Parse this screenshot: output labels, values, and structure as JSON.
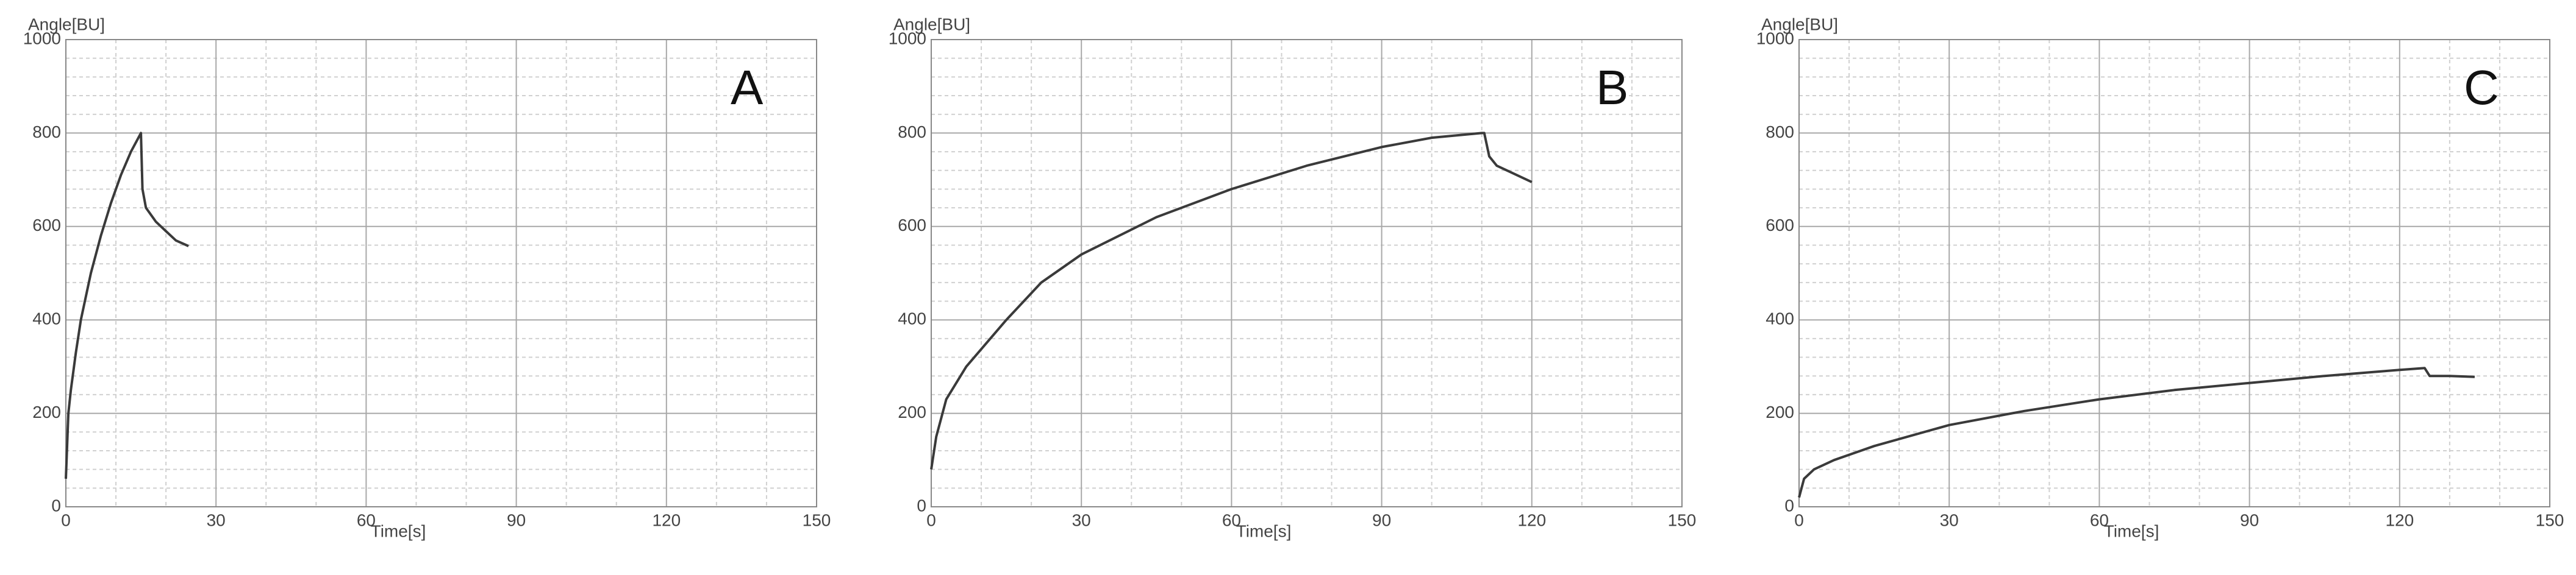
{
  "chart_data": [
    {
      "type": "line",
      "annotation": "A",
      "ylabel": "Angle[BU]",
      "xlabel": "Time[s]",
      "color": "#3a3a3a",
      "x": [
        0,
        0.5,
        1,
        2,
        3,
        5,
        7,
        9,
        11,
        13,
        15,
        15.3,
        16,
        18,
        20,
        22,
        24.5
      ],
      "values": [
        60,
        200,
        250,
        330,
        400,
        500,
        580,
        650,
        710,
        760,
        800,
        680,
        640,
        610,
        590,
        570,
        558
      ],
      "xlim": [
        0,
        150
      ],
      "xticks": [
        0,
        30,
        60,
        90,
        120,
        150
      ],
      "ylim": [
        0,
        1000
      ],
      "yticks": [
        0,
        200,
        400,
        600,
        800,
        1000
      ],
      "grid": true
    },
    {
      "type": "line",
      "annotation": "B",
      "ylabel": "Angle[BU]",
      "xlabel": "Time[s]",
      "color": "#3a3a3a",
      "x": [
        0,
        1,
        3,
        7,
        15,
        22,
        30,
        45,
        60,
        75,
        90,
        100,
        110,
        110.5,
        111.5,
        113,
        116,
        120
      ],
      "values": [
        80,
        150,
        230,
        300,
        400,
        480,
        540,
        620,
        680,
        730,
        770,
        790,
        800,
        800,
        750,
        730,
        715,
        695
      ],
      "xlim": [
        0,
        150
      ],
      "xticks": [
        0,
        30,
        60,
        90,
        120,
        150
      ],
      "ylim": [
        0,
        1000
      ],
      "yticks": [
        0,
        200,
        400,
        600,
        800,
        1000
      ],
      "grid": true
    },
    {
      "type": "line",
      "annotation": "C",
      "ylabel": "Angle[BU]",
      "xlabel": "Time[s]",
      "color": "#3a3a3a",
      "x": [
        0,
        1,
        3,
        7,
        15,
        30,
        45,
        60,
        75,
        90,
        105,
        120,
        125,
        126,
        130,
        135
      ],
      "values": [
        20,
        60,
        80,
        100,
        130,
        175,
        205,
        230,
        250,
        265,
        280,
        293,
        297,
        280,
        280,
        278
      ],
      "xlim": [
        0,
        150
      ],
      "xticks": [
        0,
        30,
        60,
        90,
        120,
        150
      ],
      "ylim": [
        0,
        1000
      ],
      "yticks": [
        0,
        200,
        400,
        600,
        800,
        1000
      ],
      "grid": true
    }
  ]
}
